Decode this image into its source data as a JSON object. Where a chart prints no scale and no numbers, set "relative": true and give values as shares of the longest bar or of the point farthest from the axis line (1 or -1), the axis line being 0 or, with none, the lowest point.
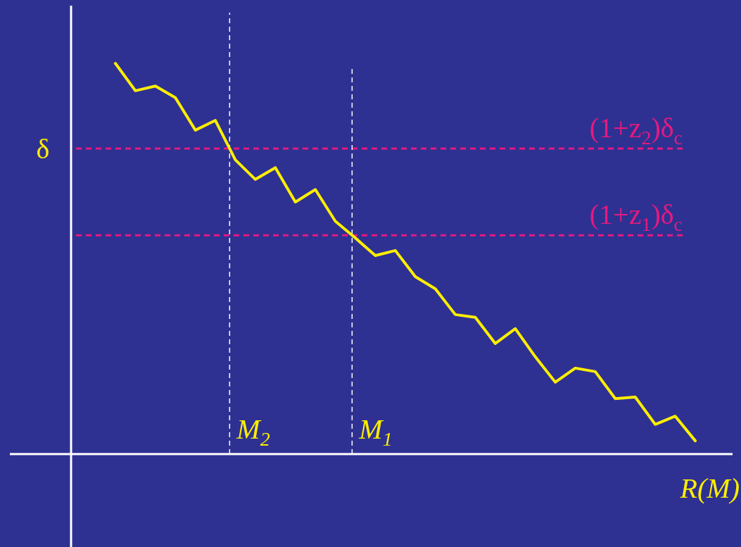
{
  "chart_data": {
    "type": "line",
    "relative": true,
    "xlabel": "R(M)",
    "ylabel": "δ",
    "categories": [
      null,
      null,
      null,
      null,
      null,
      null,
      null,
      null,
      null,
      null,
      null,
      null,
      null,
      null,
      null,
      null,
      null,
      null,
      null,
      null,
      null,
      null,
      null,
      null,
      null,
      null,
      null,
      null,
      null,
      null
    ],
    "series": [
      {
        "color": "#ffee00",
        "values": [
          1,
          0.93,
          0.942,
          0.912,
          0.829,
          0.854,
          0.753,
          0.703,
          0.733,
          0.645,
          0.677,
          0.596,
          0.553,
          0.508,
          0.521,
          0.454,
          0.423,
          0.357,
          0.35,
          0.283,
          0.321,
          0.249,
          0.184,
          0.22,
          0.211,
          0.142,
          0.146,
          0.076,
          0.097,
          0.034
        ]
      }
    ],
    "ref_lines": [
      {
        "axis": "y",
        "value": 0.782,
        "label": "(1+z$_{2}$)δ$_{c}$",
        "color": "#e6197f",
        "line_style": "dashed"
      },
      {
        "axis": "y",
        "value": 0.56,
        "label": "(1+z$_{1}$)δ$_{c}$",
        "color": "#e6197f",
        "line_style": "dashed"
      }
    ],
    "annotations": [
      "M$_{2}$",
      "M$_{1}$"
    ],
    "line_style": "solid"
  }
}
